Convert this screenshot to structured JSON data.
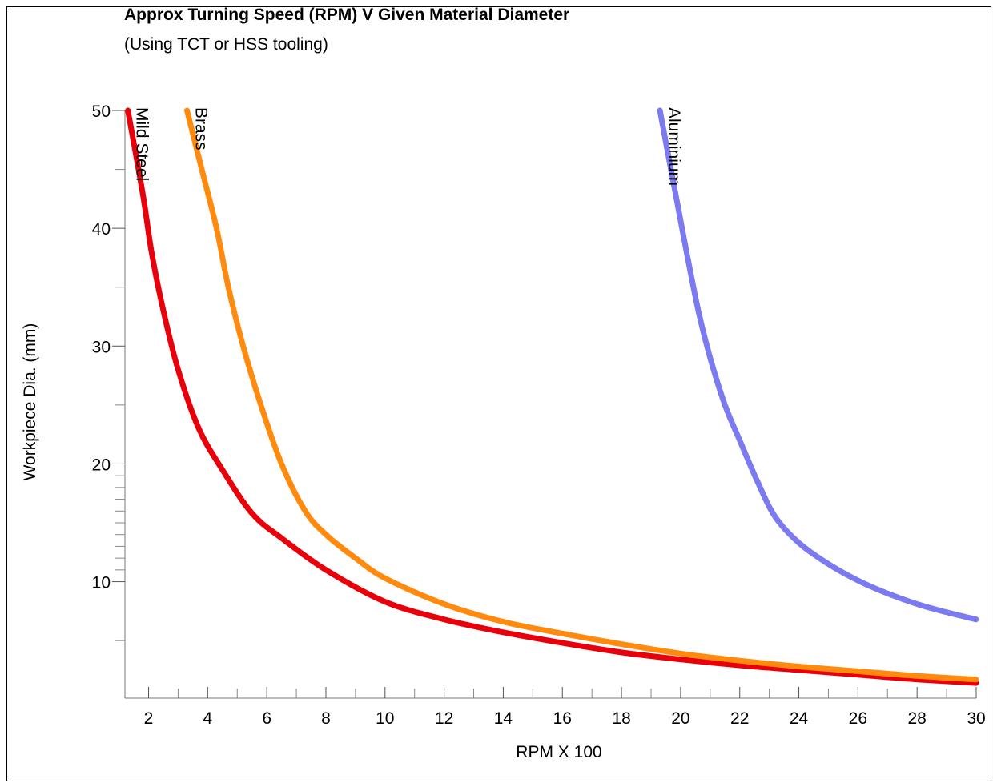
{
  "chart_data": {
    "type": "line",
    "title": "Approx Turning Speed (RPM) V Given Material Diameter",
    "subtitle": "(Using TCT or HSS tooling)",
    "xlabel": "RPM X 100",
    "ylabel": "Workpiece Dia. (mm)",
    "xlim": [
      1.2,
      30
    ],
    "ylim": [
      1,
      50
    ],
    "xticks": [
      2,
      4,
      6,
      8,
      10,
      12,
      14,
      16,
      18,
      20,
      22,
      24,
      26,
      28,
      30
    ],
    "yticks": [
      10,
      20,
      30,
      40,
      50
    ],
    "grid": false,
    "legend": "inline labels",
    "series": [
      {
        "name": "Mild Steel",
        "color": "#e8000b",
        "points": [
          [
            1.3,
            50
          ],
          [
            1.8,
            43
          ],
          [
            2.1,
            38
          ],
          [
            2.5,
            33
          ],
          [
            3,
            28
          ],
          [
            3.7,
            23
          ],
          [
            4.5,
            19.5
          ],
          [
            5.5,
            15.8
          ],
          [
            6.5,
            13.7
          ],
          [
            8,
            11
          ],
          [
            10,
            8.3
          ],
          [
            12,
            6.8
          ],
          [
            14,
            5.7
          ],
          [
            16,
            4.8
          ],
          [
            18,
            4
          ],
          [
            20,
            3.4
          ],
          [
            22,
            2.9
          ],
          [
            24,
            2.5
          ],
          [
            26,
            2.1
          ],
          [
            28,
            1.7
          ],
          [
            30,
            1.4
          ]
        ]
      },
      {
        "name": "Brass",
        "color": "#ff8a0e",
        "points": [
          [
            3.3,
            50
          ],
          [
            3.8,
            45
          ],
          [
            4.3,
            40
          ],
          [
            4.7,
            35
          ],
          [
            5.2,
            30
          ],
          [
            5.8,
            25
          ],
          [
            6.5,
            20
          ],
          [
            7.3,
            16
          ],
          [
            8,
            14
          ],
          [
            9,
            12
          ],
          [
            10,
            10.3
          ],
          [
            12,
            8.1
          ],
          [
            14,
            6.6
          ],
          [
            16,
            5.6
          ],
          [
            18,
            4.7
          ],
          [
            20,
            3.9
          ],
          [
            22,
            3.3
          ],
          [
            24,
            2.8
          ],
          [
            26,
            2.4
          ],
          [
            28,
            2
          ],
          [
            30,
            1.7
          ]
        ]
      },
      {
        "name": "Aluminium",
        "color": "#7b7af0",
        "points": [
          [
            19.3,
            50
          ],
          [
            19.6,
            46
          ],
          [
            19.9,
            42
          ],
          [
            20.2,
            38
          ],
          [
            20.6,
            33
          ],
          [
            21,
            29
          ],
          [
            21.5,
            25
          ],
          [
            22,
            22
          ],
          [
            22.6,
            18.5
          ],
          [
            23.2,
            15.5
          ],
          [
            24,
            13.3
          ],
          [
            25,
            11.5
          ],
          [
            26,
            10.1
          ],
          [
            27,
            9
          ],
          [
            28,
            8.1
          ],
          [
            29,
            7.4
          ],
          [
            30,
            6.8
          ]
        ]
      }
    ]
  }
}
